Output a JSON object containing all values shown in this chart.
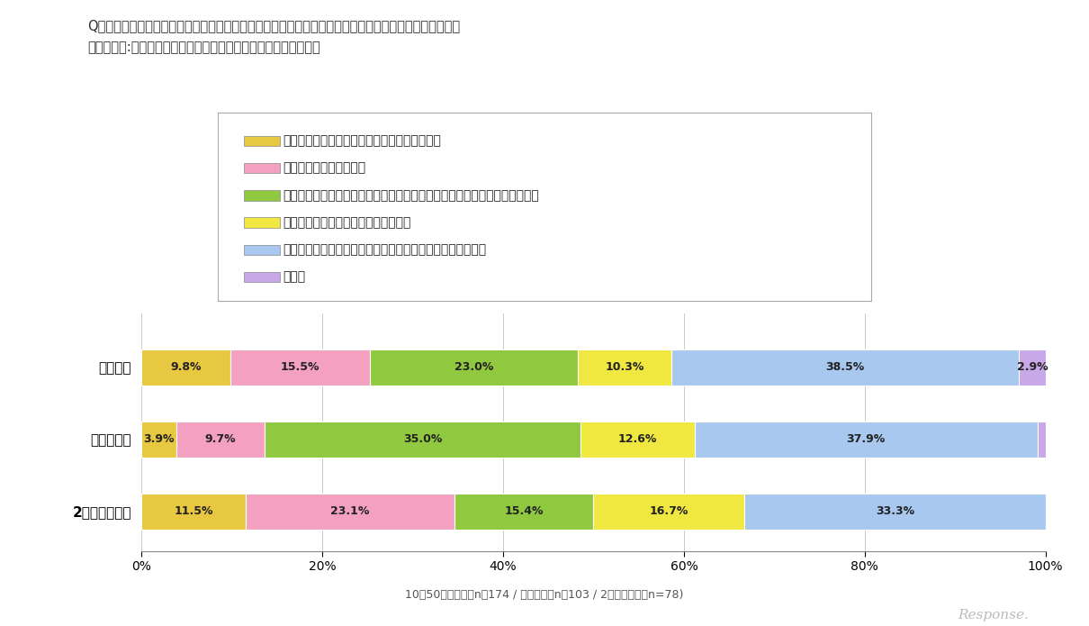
{
  "title_line1": "Q．あなたは、「ステマ」は今後どうなっていくべきだと考えますか？最も近い考えをお選びください。",
  "title_line2": "　【対象者:「ステマ」という言葉を見たりきいたことがある人】",
  "categories": [
    "一般男女",
    "広告関係者",
    "2ちゃんねらー"
  ],
  "legend_labels": [
    "インターネットユーザーがルール作りをすべき",
    "政府が法規制を敷くべき",
    "プロモーションに携わる企業や団体が一体となってガイドラインを示すべき",
    "このまま自然淘汰されるのを待つべき",
    "元々ユーザーが情報選別すべきで、誰かが規制すべきでない",
    "その他"
  ],
  "colors": [
    "#E8C840",
    "#F4A0C0",
    "#90C840",
    "#F0E840",
    "#A8C8F0",
    "#C8A8E8"
  ],
  "data": {
    "一般男女": [
      9.8,
      15.5,
      23.0,
      10.3,
      38.5,
      2.9
    ],
    "広告関係者": [
      3.9,
      9.7,
      35.0,
      12.6,
      37.9,
      1.0
    ],
    "2ちゃんねらー": [
      11.5,
      23.1,
      15.4,
      16.7,
      33.3,
      0.0
    ]
  },
  "footnote": "10～50代一般男女n＝174 / 広告関係者n＝103 / 2ちゃんねらーn=78)",
  "background_color": "#FFFFFF",
  "bar_height": 0.5,
  "xlim": [
    0,
    100
  ],
  "xticks": [
    0,
    20,
    40,
    60,
    80,
    100
  ],
  "xtick_labels": [
    "0%",
    "20%",
    "40%",
    "60%",
    "80%",
    "100%"
  ]
}
